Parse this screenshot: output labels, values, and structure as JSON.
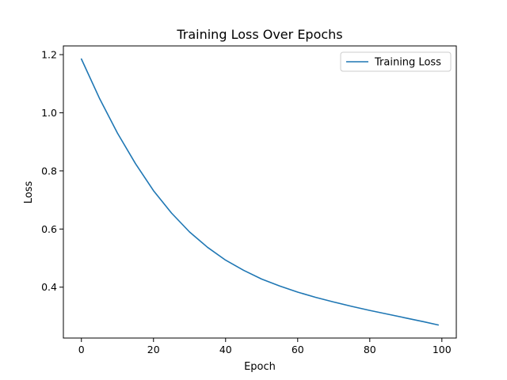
{
  "chart_data": {
    "type": "line",
    "title": "Training Loss Over Epochs",
    "xlabel": "Epoch",
    "ylabel": "Loss",
    "xlim": [
      -5,
      104
    ],
    "ylim": [
      0.225,
      1.23
    ],
    "xticks": [
      0,
      20,
      40,
      60,
      80,
      100
    ],
    "yticks": [
      0.4,
      0.6,
      0.8,
      1.0,
      1.2
    ],
    "ytick_labels": [
      "0.4",
      "0.6",
      "0.8",
      "1.0",
      "1.2"
    ],
    "grid": false,
    "legend": {
      "placement": "top-right",
      "entries": [
        "Training Loss"
      ]
    },
    "series": [
      {
        "name": "Training Loss",
        "color": "#1f77b4",
        "x": [
          0,
          5,
          10,
          15,
          20,
          25,
          30,
          35,
          40,
          45,
          50,
          55,
          60,
          65,
          70,
          75,
          80,
          85,
          90,
          95,
          99
        ],
        "y": [
          1.185,
          1.05,
          0.93,
          0.825,
          0.732,
          0.655,
          0.59,
          0.537,
          0.493,
          0.458,
          0.428,
          0.404,
          0.383,
          0.365,
          0.349,
          0.334,
          0.32,
          0.307,
          0.294,
          0.281,
          0.27
        ]
      }
    ]
  }
}
